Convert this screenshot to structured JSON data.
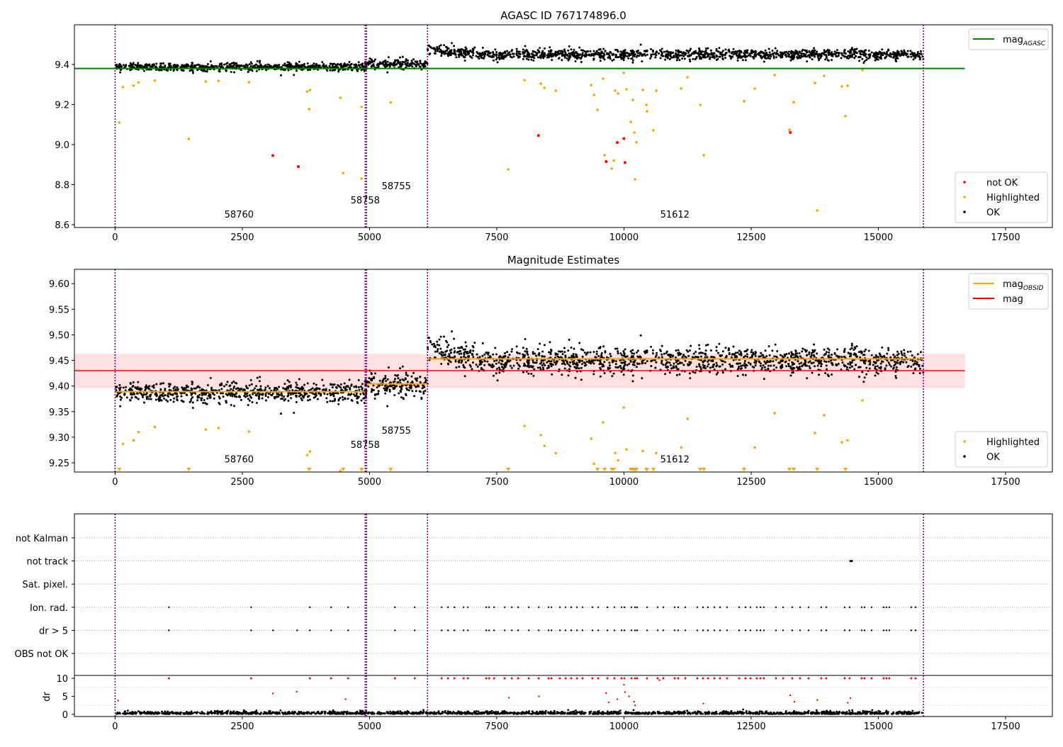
{
  "chart_data": {
    "type": "scatter",
    "xlim": [
      -800,
      18420
    ],
    "x_ticks": [
      0,
      2500,
      5000,
      7500,
      10000,
      12500,
      15000,
      17500
    ],
    "x_tick_labels": [
      "0",
      "2500",
      "5000",
      "7500",
      "10000",
      "12500",
      "15000",
      "17500"
    ],
    "obsid_boundaries": [
      0,
      4915,
      4940,
      6140,
      15885
    ],
    "segments": [
      {
        "obsid": "58760",
        "x_start": 0,
        "x_end": 4915,
        "mean": 9.388,
        "sd": 0.01,
        "mag_obsid": 9.389
      },
      {
        "obsid": "58758",
        "x_start": 4915,
        "x_end": 4940,
        "mean": 9.395,
        "sd": 0.01,
        "mag_obsid": 9.395
      },
      {
        "obsid": "58755",
        "x_start": 4940,
        "x_end": 6140,
        "mean": 9.403,
        "sd": 0.011,
        "mag_obsid": 9.404
      },
      {
        "obsid": "51612",
        "x_start": 6140,
        "x_end": 15885,
        "mean": 9.45,
        "sd": 0.013,
        "mag_obsid": 9.453
      }
    ],
    "panels": [
      {
        "title": "AGASC ID 767174896.0",
        "ylim": [
          8.586,
          9.598
        ],
        "y_ticks": [
          8.6,
          8.8,
          9.0,
          9.2,
          9.4
        ],
        "y_tick_labels": [
          "8.6",
          "8.8",
          "9.0",
          "9.2",
          "9.4"
        ],
        "mag_agasc": 9.38,
        "obsid_labels": [
          {
            "text": "58760",
            "x": 2436,
            "y": 8.635
          },
          {
            "text": "58758",
            "x": 4914,
            "y": 8.706
          },
          {
            "text": "58755",
            "x": 5527,
            "y": 8.777
          },
          {
            "text": "51612",
            "x": 11000,
            "y": 8.635
          }
        ],
        "legend_top": [
          {
            "label": "mag",
            "sub": "AGASC",
            "color": "#008000"
          }
        ],
        "legend_bottom": [
          {
            "label": "not OK",
            "color": "#ff0000"
          },
          {
            "label": "Highlighted",
            "color": "#ffa500"
          },
          {
            "label": "OK",
            "color": "#000000"
          }
        ]
      },
      {
        "title": "Magnitude Estimates",
        "ylim": [
          9.232,
          9.628
        ],
        "y_ticks": [
          9.25,
          9.3,
          9.35,
          9.4,
          9.45,
          9.5,
          9.55,
          9.6
        ],
        "y_tick_labels": [
          "9.25",
          "9.30",
          "9.35",
          "9.40",
          "9.45",
          "9.50",
          "9.55",
          "9.60"
        ],
        "mag": 9.43,
        "mag_band": [
          9.396,
          9.463
        ],
        "obsid_labels": [
          {
            "text": "58760",
            "x": 2436,
            "y": 9.251
          },
          {
            "text": "58758",
            "x": 4914,
            "y": 9.279
          },
          {
            "text": "58755",
            "x": 5527,
            "y": 9.307
          },
          {
            "text": "51612",
            "x": 11000,
            "y": 9.251
          }
        ],
        "legend_top": [
          {
            "label": "mag",
            "sub": "OBSID",
            "color": "#ffa500"
          },
          {
            "label": "mag",
            "sub": "",
            "color": "#ff0000"
          }
        ],
        "legend_bottom": [
          {
            "label": "Highlighted",
            "color": "#ffa500"
          },
          {
            "label": "OK",
            "color": "#000000"
          }
        ]
      }
    ],
    "not_ok_points": [
      [
        3100,
        8.945
      ],
      [
        3600,
        8.89
      ],
      [
        8320,
        9.045
      ],
      [
        9650,
        8.915
      ],
      [
        9870,
        9.01
      ],
      [
        10000,
        9.03
      ],
      [
        10020,
        8.91
      ],
      [
        13270,
        9.06
      ]
    ],
    "highlighted_points": [
      [
        84,
        9.11
      ],
      [
        153,
        9.287
      ],
      [
        362,
        9.294
      ],
      [
        460,
        9.31
      ],
      [
        780,
        9.32
      ],
      [
        1448,
        9.028
      ],
      [
        1782,
        9.315
      ],
      [
        2033,
        9.318
      ],
      [
        2631,
        9.311
      ],
      [
        3773,
        9.265
      ],
      [
        3829,
        9.272
      ],
      [
        3815,
        9.177
      ],
      [
        4427,
        9.234
      ],
      [
        4483,
        8.858
      ],
      [
        4845,
        9.188
      ],
      [
        4845,
        8.83
      ],
      [
        5416,
        9.21
      ],
      [
        7727,
        8.876
      ],
      [
        8047,
        9.322
      ],
      [
        8367,
        9.304
      ],
      [
        8437,
        9.283
      ],
      [
        8660,
        9.269
      ],
      [
        9356,
        9.297
      ],
      [
        9411,
        9.248
      ],
      [
        9481,
        9.173
      ],
      [
        9592,
        9.329
      ],
      [
        9620,
        8.947
      ],
      [
        9759,
        8.88
      ],
      [
        9801,
        8.92
      ],
      [
        9829,
        9.269
      ],
      [
        9885,
        9.255
      ],
      [
        9996,
        9.358
      ],
      [
        10051,
        9.276
      ],
      [
        10135,
        9.113
      ],
      [
        10177,
        9.223
      ],
      [
        10205,
        9.06
      ],
      [
        10219,
        8.826
      ],
      [
        10246,
        9.011
      ],
      [
        10372,
        9.273
      ],
      [
        10441,
        9.198
      ],
      [
        10455,
        9.166
      ],
      [
        10580,
        9.071
      ],
      [
        10636,
        9.269
      ],
      [
        11124,
        9.28
      ],
      [
        11249,
        9.336
      ],
      [
        11500,
        9.198
      ],
      [
        11569,
        8.947
      ],
      [
        12362,
        9.216
      ],
      [
        12571,
        9.28
      ],
      [
        12961,
        9.347
      ],
      [
        13253,
        9.074
      ],
      [
        13337,
        9.212
      ],
      [
        13754,
        9.308
      ],
      [
        13796,
        8.671
      ],
      [
        13935,
        9.343
      ],
      [
        14284,
        9.29
      ],
      [
        14353,
        9.142
      ],
      [
        14395,
        9.294
      ],
      [
        14687,
        9.372
      ]
    ],
    "flags_panel": {
      "categories": [
        "OBS not OK",
        "dr > 5",
        "Ion. rad.",
        "Sat. pixel.",
        "not track",
        "not Kalman"
      ],
      "ion_rad_x": [
        1058,
        2673,
        3828,
        4246,
        4580,
        5499,
        5888,
        6418,
        6543,
        6668,
        6849,
        6933,
        7295,
        7350,
        7448,
        7657,
        7796,
        7921,
        8130,
        8325,
        8520,
        8575,
        8742,
        8854,
        8965,
        9076,
        9187,
        9382,
        9494,
        9675,
        9814,
        9953,
        10009,
        10148,
        10218,
        10259,
        10454,
        10663,
        10774,
        10997,
        11066,
        11206,
        11442,
        11554,
        11651,
        11777,
        11888,
        12027,
        12264,
        12389,
        12487,
        12612,
        12682,
        12751,
        12988,
        13127,
        13308,
        13461,
        13628,
        13878,
        13976,
        14338,
        14435,
        14672,
        14728,
        14867,
        15104,
        15159,
        15215,
        15647,
        15731
      ],
      "dr5_extra_x": [
        3104,
        3577
      ],
      "not_track_x": [
        14450,
        14465,
        14480
      ]
    },
    "dr_panel": {
      "ylabel": "dr",
      "ylim": [
        -0.6,
        10.8
      ],
      "y_ticks": [
        0,
        5,
        10
      ],
      "y_tick_labels": [
        "0",
        "5",
        "10"
      ],
      "mid_red_points": [
        [
          60,
          3.8
        ],
        [
          3100,
          5.8
        ],
        [
          3570,
          6.3
        ],
        [
          4530,
          4.2
        ],
        [
          7740,
          4.6
        ],
        [
          8330,
          5.0
        ],
        [
          9650,
          5.9
        ],
        [
          9700,
          3.3
        ],
        [
          9870,
          4.2
        ],
        [
          10000,
          8.2
        ],
        [
          10020,
          6.2
        ],
        [
          10100,
          5.0
        ],
        [
          10200,
          3.5
        ],
        [
          10220,
          2.5
        ],
        [
          10700,
          9.5
        ],
        [
          11560,
          3.0
        ],
        [
          13270,
          5.3
        ],
        [
          13350,
          3.5
        ],
        [
          13800,
          4.0
        ],
        [
          14400,
          3.2
        ],
        [
          14450,
          4.5
        ]
      ]
    },
    "colors": {
      "ok": "#000000",
      "highlighted": "#ffa500",
      "not_ok": "#ff0000",
      "agasc": "#008000",
      "obsid_line": "#800080",
      "band": "#ffe0e0"
    }
  }
}
